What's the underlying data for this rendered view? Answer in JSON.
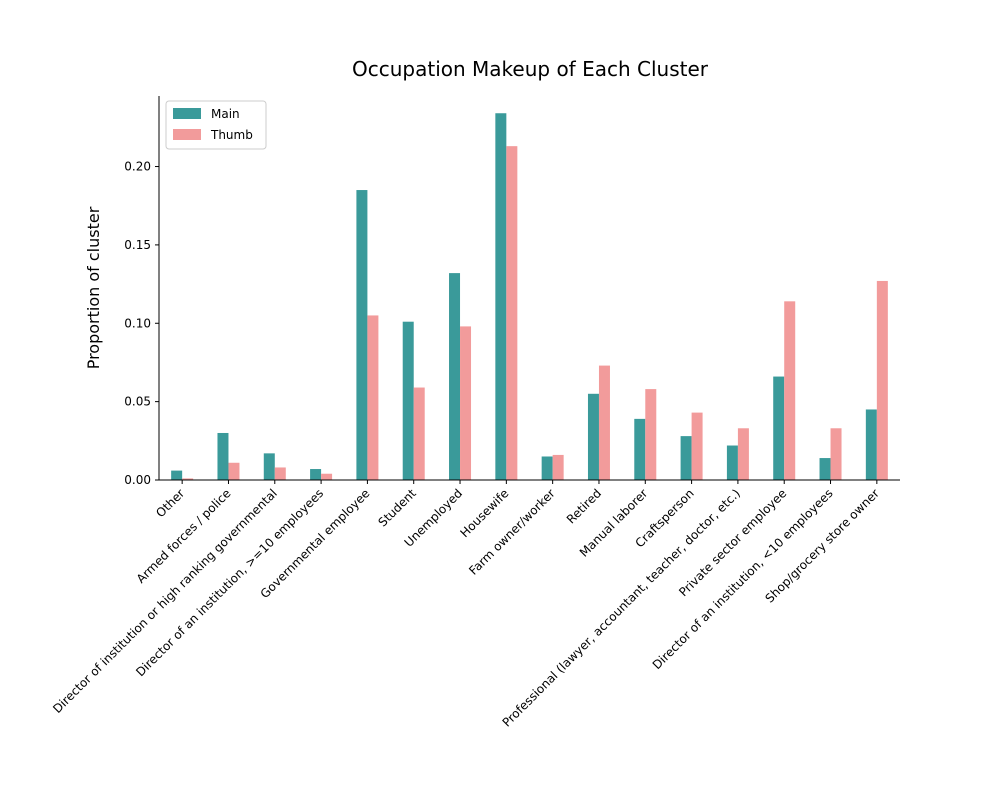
{
  "chart_data": {
    "type": "bar",
    "title": "Occupation Makeup of Each Cluster",
    "xlabel": "",
    "ylabel": "Proportion of cluster",
    "ylim": [
      0,
      0.245
    ],
    "yticks": [
      "0.00",
      "0.05",
      "0.10",
      "0.15",
      "0.20"
    ],
    "ytick_values": [
      0,
      0.05,
      0.1,
      0.15,
      0.2
    ],
    "grid": false,
    "legend_position": "top-left",
    "categories": [
      "Other",
      "Armed forces / police",
      "Director of institution or high ranking governmental",
      "Director of an institution, >=10 employees",
      "Governmental employee",
      "Student",
      "Unemployed",
      "Housewife",
      "Farm owner/worker",
      "Retired",
      "Manual laborer",
      "Craftsperson",
      "Professional (lawyer, accountant, teacher, doctor, etc.)",
      "Private sector employee",
      "Director of an institution, <10 employees",
      "Shop/grocery store owner"
    ],
    "series": [
      {
        "name": "Main",
        "color": "#3a9a9a",
        "values": [
          0.006,
          0.03,
          0.017,
          0.007,
          0.185,
          0.101,
          0.132,
          0.234,
          0.015,
          0.055,
          0.039,
          0.028,
          0.022,
          0.066,
          0.014,
          0.045
        ]
      },
      {
        "name": "Thumb",
        "color": "#f29b9b",
        "values": [
          0.001,
          0.011,
          0.008,
          0.004,
          0.105,
          0.059,
          0.098,
          0.213,
          0.016,
          0.073,
          0.058,
          0.043,
          0.033,
          0.114,
          0.033,
          0.127
        ]
      }
    ]
  }
}
